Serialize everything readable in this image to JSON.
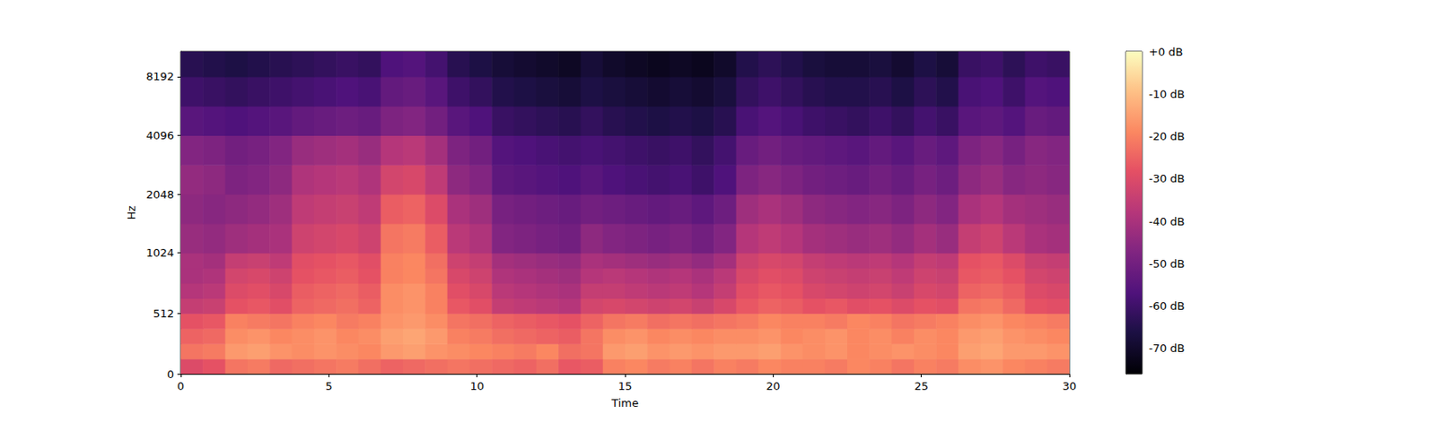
{
  "chart_data": {
    "type": "heatmap",
    "xlabel": "Time",
    "ylabel": "Hz",
    "color": "magma",
    "xlim": [
      0,
      30
    ],
    "xticks": [
      0,
      5,
      10,
      15,
      20,
      25,
      30
    ],
    "ylim": [
      0,
      11025
    ],
    "yticks": [
      0,
      512,
      1024,
      2048,
      4096,
      8192
    ],
    "x_edges": [
      0,
      0.75,
      1.5,
      2.25,
      3,
      3.75,
      4.5,
      5.25,
      6,
      6.75,
      7.5,
      8.25,
      9,
      9.75,
      10.5,
      11.25,
      12,
      12.75,
      13.5,
      14.25,
      15,
      15.75,
      16.5,
      17.25,
      18,
      18.75,
      19.5,
      20.25,
      21,
      21.75,
      22.5,
      23.25,
      24,
      24.75,
      25.5,
      26.25,
      27,
      27.75,
      28.5,
      29.25,
      30
    ],
    "y_edges": [
      0,
      128,
      256,
      384,
      512,
      640,
      768,
      896,
      1024,
      1448,
      2048,
      2896,
      4096,
      5793,
      8192,
      11025
    ],
    "cells": [
      [
        -30,
        -28,
        -22,
        -21,
        -24,
        -23,
        -22,
        -21,
        -23,
        -25,
        -24,
        -23,
        -22,
        -23,
        -24,
        -25,
        -23,
        -27,
        -26,
        -20,
        -19,
        -21,
        -20,
        -22,
        -20,
        -21,
        -19,
        -20,
        -20,
        -21,
        -19,
        -20,
        -22,
        -20,
        -21,
        -18,
        -17,
        -19,
        -20,
        -21
      ],
      [
        -22,
        -21,
        -16,
        -15,
        -17,
        -18,
        -17,
        -18,
        -19,
        -16,
        -15,
        -17,
        -18,
        -19,
        -20,
        -21,
        -19,
        -23,
        -22,
        -16,
        -15,
        -17,
        -16,
        -17,
        -16,
        -16,
        -15,
        -17,
        -18,
        -17,
        -19,
        -18,
        -17,
        -18,
        -19,
        -15,
        -14,
        -16,
        -16,
        -17
      ],
      [
        -25,
        -24,
        -18,
        -17,
        -19,
        -18,
        -17,
        -19,
        -18,
        -15,
        -14,
        -16,
        -20,
        -21,
        -23,
        -24,
        -25,
        -26,
        -22,
        -18,
        -17,
        -19,
        -18,
        -19,
        -18,
        -18,
        -17,
        -19,
        -18,
        -17,
        -19,
        -18,
        -20,
        -18,
        -19,
        -16,
        -15,
        -17,
        -18,
        -19
      ],
      [
        -28,
        -27,
        -20,
        -21,
        -22,
        -20,
        -19,
        -21,
        -20,
        -17,
        -16,
        -18,
        -22,
        -23,
        -25,
        -26,
        -27,
        -28,
        -25,
        -22,
        -21,
        -23,
        -22,
        -23,
        -22,
        -21,
        -19,
        -20,
        -20,
        -21,
        -19,
        -20,
        -22,
        -21,
        -20,
        -18,
        -17,
        -19,
        -20,
        -21
      ],
      [
        -35,
        -34,
        -28,
        -27,
        -29,
        -25,
        -24,
        -23,
        -25,
        -18,
        -17,
        -20,
        -27,
        -29,
        -35,
        -36,
        -37,
        -38,
        -32,
        -31,
        -32,
        -33,
        -32,
        -34,
        -31,
        -27,
        -25,
        -26,
        -28,
        -27,
        -29,
        -28,
        -30,
        -28,
        -29,
        -22,
        -21,
        -24,
        -28,
        -29
      ],
      [
        -38,
        -37,
        -30,
        -29,
        -31,
        -26,
        -25,
        -24,
        -26,
        -18,
        -17,
        -20,
        -29,
        -31,
        -37,
        -38,
        -39,
        -40,
        -35,
        -35,
        -36,
        -37,
        -36,
        -38,
        -35,
        -29,
        -27,
        -28,
        -31,
        -32,
        -33,
        -32,
        -34,
        -31,
        -32,
        -25,
        -24,
        -26,
        -30,
        -31
      ],
      [
        -40,
        -39,
        -32,
        -31,
        -33,
        -28,
        -27,
        -26,
        -28,
        -20,
        -19,
        -22,
        -31,
        -33,
        -39,
        -40,
        -41,
        -42,
        -38,
        -37,
        -38,
        -39,
        -38,
        -40,
        -37,
        -31,
        -29,
        -30,
        -33,
        -34,
        -35,
        -34,
        -36,
        -33,
        -34,
        -27,
        -26,
        -28,
        -32,
        -33
      ],
      [
        -40,
        -41,
        -35,
        -34,
        -36,
        -29,
        -28,
        -27,
        -29,
        -20,
        -19,
        -23,
        -33,
        -35,
        -41,
        -42,
        -43,
        -44,
        -40,
        -41,
        -42,
        -43,
        -42,
        -44,
        -41,
        -33,
        -31,
        -32,
        -35,
        -36,
        -37,
        -36,
        -38,
        -35,
        -36,
        -28,
        -27,
        -30,
        -34,
        -35
      ],
      [
        -43,
        -44,
        -42,
        -41,
        -40,
        -33,
        -32,
        -31,
        -33,
        -22,
        -21,
        -26,
        -37,
        -39,
        -47,
        -48,
        -49,
        -50,
        -45,
        -47,
        -48,
        -49,
        -48,
        -50,
        -47,
        -38,
        -36,
        -38,
        -41,
        -42,
        -43,
        -42,
        -44,
        -41,
        -43,
        -35,
        -33,
        -37,
        -40,
        -41
      ],
      [
        -45,
        -46,
        -45,
        -44,
        -42,
        -36,
        -35,
        -34,
        -36,
        -26,
        -25,
        -30,
        -40,
        -42,
        -49,
        -50,
        -51,
        -52,
        -50,
        -51,
        -52,
        -53,
        -52,
        -54,
        -51,
        -42,
        -40,
        -42,
        -45,
        -46,
        -47,
        -46,
        -48,
        -45,
        -47,
        -40,
        -38,
        -41,
        -42,
        -43
      ],
      [
        -44,
        -45,
        -48,
        -47,
        -45,
        -39,
        -38,
        -37,
        -39,
        -32,
        -31,
        -36,
        -45,
        -47,
        -54,
        -55,
        -56,
        -57,
        -55,
        -57,
        -58,
        -59,
        -58,
        -60,
        -57,
        -48,
        -46,
        -48,
        -50,
        -51,
        -52,
        -50,
        -52,
        -49,
        -51,
        -45,
        -43,
        -46,
        -45,
        -46
      ],
      [
        -47,
        -48,
        -50,
        -49,
        -47,
        -43,
        -42,
        -41,
        -43,
        -38,
        -37,
        -41,
        -48,
        -50,
        -56,
        -57,
        -58,
        -59,
        -58,
        -59,
        -60,
        -61,
        -60,
        -62,
        -59,
        -52,
        -50,
        -52,
        -53,
        -54,
        -55,
        -53,
        -55,
        -52,
        -54,
        -48,
        -46,
        -49,
        -46,
        -47
      ],
      [
        -55,
        -56,
        -57,
        -56,
        -55,
        -53,
        -52,
        -51,
        -52,
        -48,
        -47,
        -50,
        -55,
        -57,
        -61,
        -62,
        -63,
        -64,
        -62,
        -64,
        -65,
        -66,
        -65,
        -66,
        -64,
        -58,
        -56,
        -58,
        -60,
        -61,
        -62,
        -60,
        -62,
        -59,
        -61,
        -55,
        -54,
        -56,
        -52,
        -53
      ],
      [
        -60,
        -61,
        -62,
        -61,
        -60,
        -59,
        -58,
        -57,
        -58,
        -53,
        -52,
        -55,
        -60,
        -62,
        -65,
        -66,
        -67,
        -68,
        -66,
        -67,
        -68,
        -69,
        -68,
        -69,
        -67,
        -62,
        -60,
        -62,
        -64,
        -65,
        -65,
        -64,
        -66,
        -63,
        -65,
        -58,
        -57,
        -60,
        -56,
        -57
      ],
      [
        -64,
        -65,
        -66,
        -65,
        -64,
        -63,
        -62,
        -61,
        -62,
        -57,
        -56,
        -59,
        -64,
        -66,
        -68,
        -69,
        -70,
        -71,
        -68,
        -70,
        -71,
        -72,
        -71,
        -72,
        -70,
        -65,
        -63,
        -65,
        -67,
        -68,
        -68,
        -67,
        -69,
        -66,
        -68,
        -61,
        -60,
        -63,
        -60,
        -61
      ]
    ],
    "colorbar": {
      "range": [
        -76,
        0
      ],
      "ticks": [
        {
          "value": 0,
          "label": "+0 dB"
        },
        {
          "value": -10,
          "label": "-10 dB"
        },
        {
          "value": -20,
          "label": "-20 dB"
        },
        {
          "value": -30,
          "label": "-30 dB"
        },
        {
          "value": -40,
          "label": "-40 dB"
        },
        {
          "value": -50,
          "label": "-50 dB"
        },
        {
          "value": -60,
          "label": "-60 dB"
        },
        {
          "value": -70,
          "label": "-70 dB"
        }
      ]
    }
  }
}
